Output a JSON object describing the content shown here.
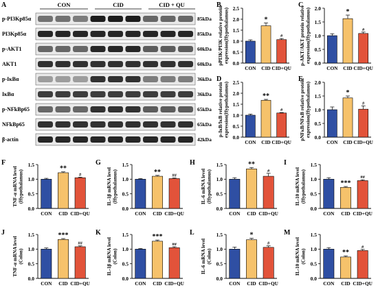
{
  "colors": {
    "CON": "#2f4fa3",
    "CID": "#f6c26b",
    "CID + QU": "#e2533a"
  },
  "blot": {
    "panel_label": "A",
    "groups": [
      "CON",
      "CID",
      "CID + QU"
    ],
    "rows": [
      {
        "name": "p-PI3Kp85α",
        "kda": "85kDa"
      },
      {
        "name": "PI3Kp85α",
        "kda": "85kDa"
      },
      {
        "name": "p-AKT1",
        "kda": "60kDa"
      },
      {
        "name": "AKT1",
        "kda": "60kDa"
      },
      {
        "name": "p-IκBα",
        "kda": "36kDa"
      },
      {
        "name": "IκBα",
        "kda": "36kDa"
      },
      {
        "name": "p-NFkBp65",
        "kda": "65kDa"
      },
      {
        "name": "NFkBp65",
        "kda": "65kDa"
      },
      {
        "name": "β-actin",
        "kda": "42kDa"
      }
    ]
  },
  "chart_data": [
    {
      "panel": "B",
      "type": "bar",
      "categories": [
        "CON",
        "CID",
        "CID+QU"
      ],
      "values": [
        1.0,
        1.7,
        1.07
      ],
      "errors": [
        0.06,
        0.13,
        0.05
      ],
      "sig": [
        "",
        "*",
        "#"
      ],
      "ylabel": "pPI3K/PI3K relative protein expression(Hypothalamus)",
      "ylim": [
        0,
        2.5
      ],
      "yticks": [
        "0.0",
        "0.5",
        "1.0",
        "1.5",
        "2.0",
        "2.5"
      ]
    },
    {
      "panel": "C",
      "type": "bar",
      "categories": [
        "CON",
        "CID",
        "CID+QU"
      ],
      "values": [
        1.0,
        1.62,
        1.08
      ],
      "errors": [
        0.07,
        0.13,
        0.05
      ],
      "sig": [
        "",
        "*",
        "#"
      ],
      "ylabel": "p-AKT/AKT protein relative expression(Hypothalamus)",
      "ylim": [
        0,
        2.0
      ],
      "yticks": [
        "0.0",
        "0.5",
        "1.0",
        "1.5",
        "2.0"
      ]
    },
    {
      "panel": "D",
      "type": "bar",
      "categories": [
        "CON",
        "CID",
        "CID+QU"
      ],
      "values": [
        1.0,
        1.68,
        1.1
      ],
      "errors": [
        0.05,
        0.04,
        0.02
      ],
      "sig": [
        "",
        "**",
        "#"
      ],
      "ylabel": "p-IκB/IκB relative protein expression(Hypothalamus)",
      "ylim": [
        0,
        2.5
      ],
      "yticks": [
        "0.0",
        "0.5",
        "1.0",
        "1.5",
        "2.0",
        "2.5"
      ]
    },
    {
      "panel": "E",
      "type": "bar",
      "categories": [
        "CON",
        "CID",
        "CID+QU"
      ],
      "values": [
        1.0,
        1.43,
        1.02
      ],
      "errors": [
        0.1,
        0.07,
        0.12
      ],
      "sig": [
        "",
        "*",
        "#"
      ],
      "ylabel": "pNFκB/NFκB relative protein expression(Hypothalamus)",
      "ylim": [
        0,
        2.0
      ],
      "yticks": [
        "0.0",
        "0.5",
        "1.0",
        "1.5",
        "2.0"
      ]
    },
    {
      "panel": "F",
      "type": "bar",
      "categories": [
        "CON",
        "CID",
        "CID+QU"
      ],
      "values": [
        1.0,
        1.22,
        1.05
      ],
      "errors": [
        0.03,
        0.03,
        0.02
      ],
      "sig": [
        "",
        "**",
        "#"
      ],
      "ylabel": "TNF-α mRNA level (Hypothalamus)",
      "ylim": [
        0,
        1.5
      ],
      "yticks": [
        "0.0",
        "0.5",
        "1.0",
        "1.5"
      ]
    },
    {
      "panel": "G",
      "type": "bar",
      "categories": [
        "CON",
        "CID",
        "CID+QU"
      ],
      "values": [
        1.0,
        1.1,
        1.02
      ],
      "errors": [
        0.02,
        0.03,
        0.02
      ],
      "sig": [
        "",
        "**",
        "##"
      ],
      "ylabel": "IL-1β mRNA level (Hypothalamus)",
      "ylim": [
        0,
        1.5
      ],
      "yticks": [
        "0.0",
        "0.5",
        "1.0",
        "1.5"
      ]
    },
    {
      "panel": "H",
      "type": "bar",
      "categories": [
        "CON",
        "CID",
        "CID+QU"
      ],
      "values": [
        1.0,
        1.35,
        1.1
      ],
      "errors": [
        0.05,
        0.05,
        0.1
      ],
      "sig": [
        "",
        "**",
        "#"
      ],
      "ylabel": "IL-6 mRNA level (Hypothalamus)",
      "ylim": [
        0,
        1.5
      ],
      "yticks": [
        "0.0",
        "0.5",
        "1.0",
        "1.5"
      ]
    },
    {
      "panel": "I",
      "type": "bar",
      "categories": [
        "CON",
        "CID",
        "CID+QU"
      ],
      "values": [
        1.0,
        0.72,
        0.95
      ],
      "errors": [
        0.05,
        0.03,
        0.03
      ],
      "sig": [
        "",
        "***",
        "##"
      ],
      "ylabel": "IL-10 mRNA level (Hypothalamus)",
      "ylim": [
        0,
        1.5
      ],
      "yticks": [
        "0.0",
        "0.5",
        "1.0",
        "1.5"
      ]
    },
    {
      "panel": "J",
      "type": "bar",
      "categories": [
        "CON",
        "CID",
        "CID+QU"
      ],
      "values": [
        1.0,
        1.33,
        1.08
      ],
      "errors": [
        0.04,
        0.03,
        0.03
      ],
      "sig": [
        "",
        "***",
        "##"
      ],
      "ylabel": "TNF-α mRNA level (Colon)",
      "ylim": [
        0,
        1.5
      ],
      "yticks": [
        "0.0",
        "0.5",
        "1.0",
        "1.5"
      ]
    },
    {
      "panel": "K",
      "type": "bar",
      "categories": [
        "CON",
        "CID",
        "CID+QU"
      ],
      "values": [
        1.0,
        1.27,
        1.05
      ],
      "errors": [
        0.02,
        0.04,
        0.03
      ],
      "sig": [
        "",
        "***",
        "##"
      ],
      "ylabel": "IL-1β mRNA level (Colon)",
      "ylim": [
        0,
        1.5
      ],
      "yticks": [
        "0.0",
        "0.5",
        "1.0",
        "1.5"
      ]
    },
    {
      "panel": "L",
      "type": "bar",
      "categories": [
        "CON",
        "CID",
        "CID+QU"
      ],
      "values": [
        1.0,
        1.32,
        1.06
      ],
      "errors": [
        0.07,
        0.05,
        0.05
      ],
      "sig": [
        "",
        "*",
        "#"
      ],
      "ylabel": "IL-6 mRNA level (Colon)",
      "ylim": [
        0,
        1.5
      ],
      "yticks": [
        "0.0",
        "0.5",
        "1.0",
        "1.5"
      ]
    },
    {
      "panel": "M",
      "type": "bar",
      "categories": [
        "CON",
        "CID",
        "CID+QU"
      ],
      "values": [
        1.0,
        0.73,
        0.95
      ],
      "errors": [
        0.05,
        0.04,
        0.04
      ],
      "sig": [
        "",
        "**",
        "#"
      ],
      "ylabel": "IL-10 mRNA level (Colon)",
      "ylim": [
        0,
        1.5
      ],
      "yticks": [
        "0.0",
        "0.5",
        "1.0",
        "1.5"
      ]
    }
  ]
}
